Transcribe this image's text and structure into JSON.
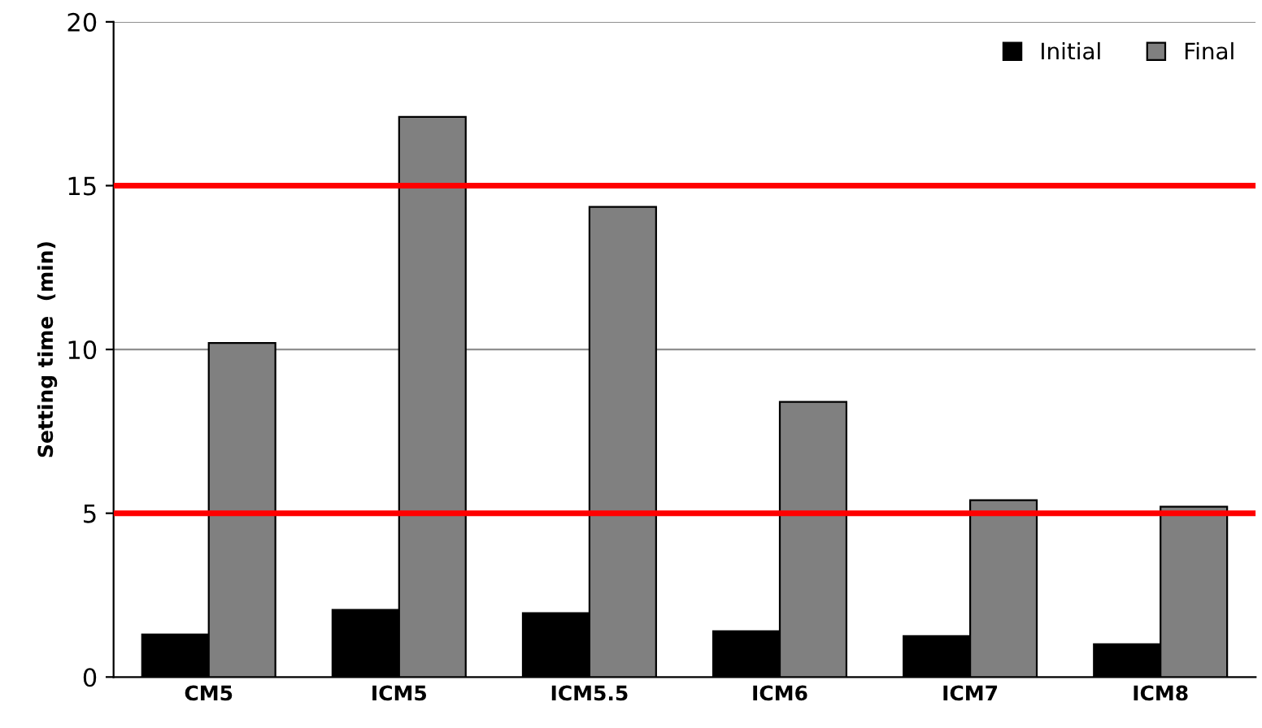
{
  "chart_data": {
    "type": "bar",
    "ylabel": "Setting time  (min)",
    "categories": [
      "CM5",
      "ICM5",
      "ICM5.5",
      "ICM6",
      "ICM7",
      "ICM8"
    ],
    "series": [
      {
        "name": "Initial",
        "color": "#000000",
        "values": [
          1.3,
          2.05,
          1.95,
          1.4,
          1.25,
          1.0
        ]
      },
      {
        "name": "Final",
        "color": "#808080",
        "values": [
          10.2,
          17.1,
          14.35,
          8.4,
          5.4,
          5.2
        ]
      }
    ],
    "ylim": [
      0,
      20
    ],
    "yticks": [
      0,
      5,
      10,
      15,
      20
    ],
    "legend": "top right",
    "ref_lines": [
      {
        "axis": "y",
        "value": 5,
        "color": "#ff0000"
      },
      {
        "axis": "y",
        "value": 15,
        "color": "#ff0000"
      },
      {
        "axis": "y",
        "value": 10,
        "color": "#909090"
      },
      {
        "axis": "y",
        "value": 20,
        "color": "#909090"
      }
    ]
  }
}
